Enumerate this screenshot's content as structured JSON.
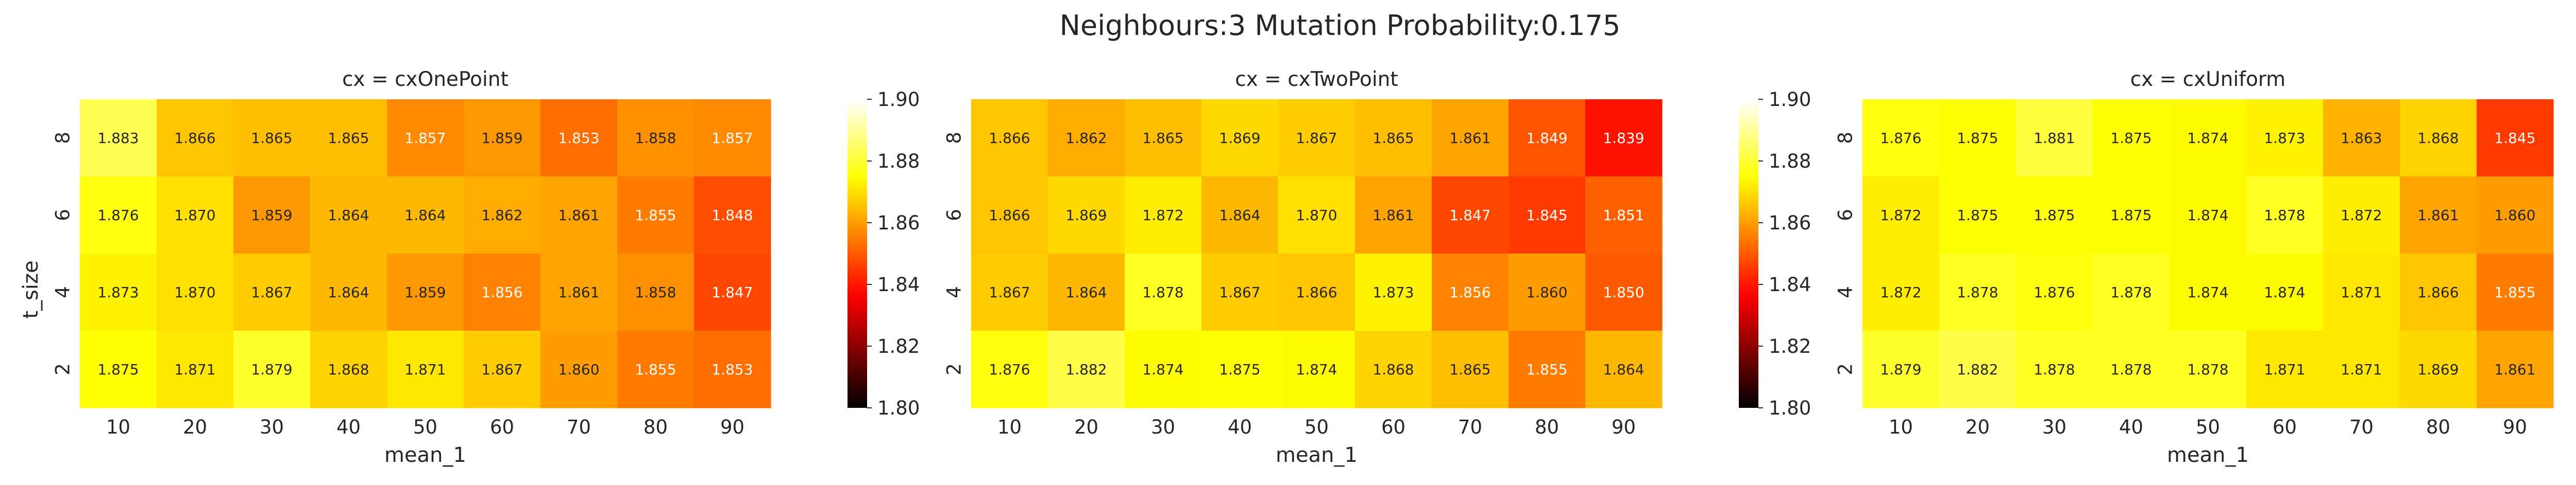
{
  "suptitle": "Neighbours:3 Mutation Probability:0.175",
  "chart_data": [
    {
      "type": "heatmap",
      "title": "cx = cxOnePoint",
      "xlabel": "mean_1",
      "ylabel": "t_size",
      "x": [
        "10",
        "20",
        "30",
        "40",
        "50",
        "60",
        "70",
        "80",
        "90"
      ],
      "y": [
        "8",
        "6",
        "4",
        "2"
      ],
      "values": [
        [
          1.883,
          1.866,
          1.865,
          1.865,
          1.857,
          1.859,
          1.853,
          1.858,
          1.857
        ],
        [
          1.876,
          1.87,
          1.859,
          1.864,
          1.864,
          1.862,
          1.861,
          1.855,
          1.848
        ],
        [
          1.873,
          1.87,
          1.867,
          1.864,
          1.859,
          1.856,
          1.861,
          1.858,
          1.847
        ],
        [
          1.875,
          1.871,
          1.879,
          1.868,
          1.871,
          1.867,
          1.86,
          1.855,
          1.853
        ]
      ],
      "labels": [
        [
          "1.883",
          "1.866",
          "1.865",
          "1.865",
          "1.857",
          "1.859",
          "1.853",
          "1.858",
          "1.857"
        ],
        [
          "1.876",
          "1.870",
          "1.859",
          "1.864",
          "1.864",
          "1.862",
          "1.861",
          "1.855",
          "1.848"
        ],
        [
          "1.873",
          "1.870",
          "1.867",
          "1.864",
          "1.859",
          "1.856",
          "1.861",
          "1.858",
          "1.847"
        ],
        [
          "1.875",
          "1.871",
          "1.879",
          "1.868",
          "1.871",
          "1.867",
          "1.860",
          "1.855",
          "1.853"
        ]
      ],
      "colormap": "hot",
      "vmin": 1.8,
      "vmax": 1.9,
      "colorbar_ticks": [
        "1.80",
        "1.82",
        "1.84",
        "1.86",
        "1.88",
        "1.90"
      ]
    },
    {
      "type": "heatmap",
      "title": "cx = cxTwoPoint",
      "xlabel": "mean_1",
      "ylabel": "",
      "x": [
        "10",
        "20",
        "30",
        "40",
        "50",
        "60",
        "70",
        "80",
        "90"
      ],
      "y": [
        "8",
        "6",
        "4",
        "2"
      ],
      "values": [
        [
          1.866,
          1.862,
          1.865,
          1.869,
          1.867,
          1.865,
          1.861,
          1.849,
          1.839
        ],
        [
          1.866,
          1.869,
          1.872,
          1.864,
          1.87,
          1.861,
          1.847,
          1.845,
          1.851
        ],
        [
          1.867,
          1.864,
          1.878,
          1.867,
          1.866,
          1.873,
          1.856,
          1.86,
          1.85
        ],
        [
          1.876,
          1.882,
          1.874,
          1.875,
          1.874,
          1.868,
          1.865,
          1.855,
          1.864
        ]
      ],
      "labels": [
        [
          "1.866",
          "1.862",
          "1.865",
          "1.869",
          "1.867",
          "1.865",
          "1.861",
          "1.849",
          "1.839"
        ],
        [
          "1.866",
          "1.869",
          "1.872",
          "1.864",
          "1.870",
          "1.861",
          "1.847",
          "1.845",
          "1.851"
        ],
        [
          "1.867",
          "1.864",
          "1.878",
          "1.867",
          "1.866",
          "1.873",
          "1.856",
          "1.860",
          "1.850"
        ],
        [
          "1.876",
          "1.882",
          "1.874",
          "1.875",
          "1.874",
          "1.868",
          "1.865",
          "1.855",
          "1.864"
        ]
      ],
      "colormap": "hot",
      "vmin": 1.8,
      "vmax": 1.9,
      "colorbar_ticks": [
        "1.80",
        "1.82",
        "1.84",
        "1.86",
        "1.88",
        "1.90"
      ]
    },
    {
      "type": "heatmap",
      "title": "cx = cxUniform",
      "xlabel": "mean_1",
      "ylabel": "",
      "x": [
        "10",
        "20",
        "30",
        "40",
        "50",
        "60",
        "70",
        "80",
        "90"
      ],
      "y": [
        "8",
        "6",
        "4",
        "2"
      ],
      "values": [
        [
          1.876,
          1.875,
          1.881,
          1.875,
          1.874,
          1.873,
          1.863,
          1.868,
          1.845
        ],
        [
          1.872,
          1.875,
          1.875,
          1.875,
          1.874,
          1.878,
          1.872,
          1.861,
          1.86
        ],
        [
          1.872,
          1.878,
          1.876,
          1.878,
          1.874,
          1.874,
          1.871,
          1.866,
          1.855
        ],
        [
          1.879,
          1.882,
          1.878,
          1.878,
          1.878,
          1.871,
          1.871,
          1.869,
          1.861
        ]
      ],
      "labels": [
        [
          "1.876",
          "1.875",
          "1.881",
          "1.875",
          "1.874",
          "1.873",
          "1.863",
          "1.868",
          "1.845"
        ],
        [
          "1.872",
          "1.875",
          "1.875",
          "1.875",
          "1.874",
          "1.878",
          "1.872",
          "1.861",
          "1.860"
        ],
        [
          "1.872",
          "1.878",
          "1.876",
          "1.878",
          "1.874",
          "1.874",
          "1.871",
          "1.866",
          "1.855"
        ],
        [
          "1.879",
          "1.882",
          "1.878",
          "1.878",
          "1.878",
          "1.871",
          "1.871",
          "1.869",
          "1.861"
        ]
      ],
      "colormap": "hot",
      "vmin": 1.8,
      "vmax": 1.9,
      "colorbar_ticks": [
        "1.80",
        "1.82",
        "1.84",
        "1.86",
        "1.88",
        "1.90"
      ]
    }
  ]
}
